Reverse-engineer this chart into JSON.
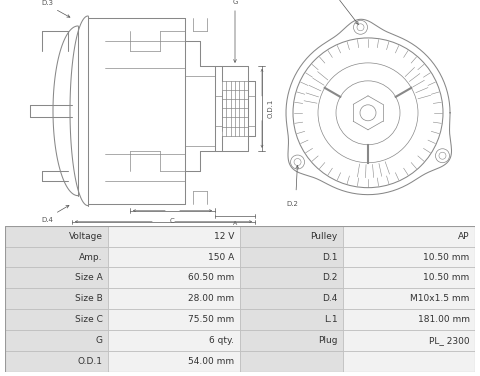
{
  "table_rows": [
    [
      "Voltage",
      "12 V",
      "Pulley",
      "AP"
    ],
    [
      "Amp.",
      "150 A",
      "D.1",
      "10.50 mm"
    ],
    [
      "Size A",
      "60.50 mm",
      "D.2",
      "10.50 mm"
    ],
    [
      "Size B",
      "28.00 mm",
      "D.4",
      "M10x1.5 mm"
    ],
    [
      "Size C",
      "75.50 mm",
      "L.1",
      "181.00 mm"
    ],
    [
      "G",
      "6 qty.",
      "Plug",
      "PL_ 2300"
    ],
    [
      "O.D.1",
      "54.00 mm",
      "",
      ""
    ]
  ],
  "bg_color": "#f8f8f8",
  "lbl_bg": "#dcdcdc",
  "val_bg": "#f0f0f0",
  "border_color": "#bbbbbb",
  "text_color": "#333333",
  "line_color": "#888888",
  "dim_color": "#555555"
}
